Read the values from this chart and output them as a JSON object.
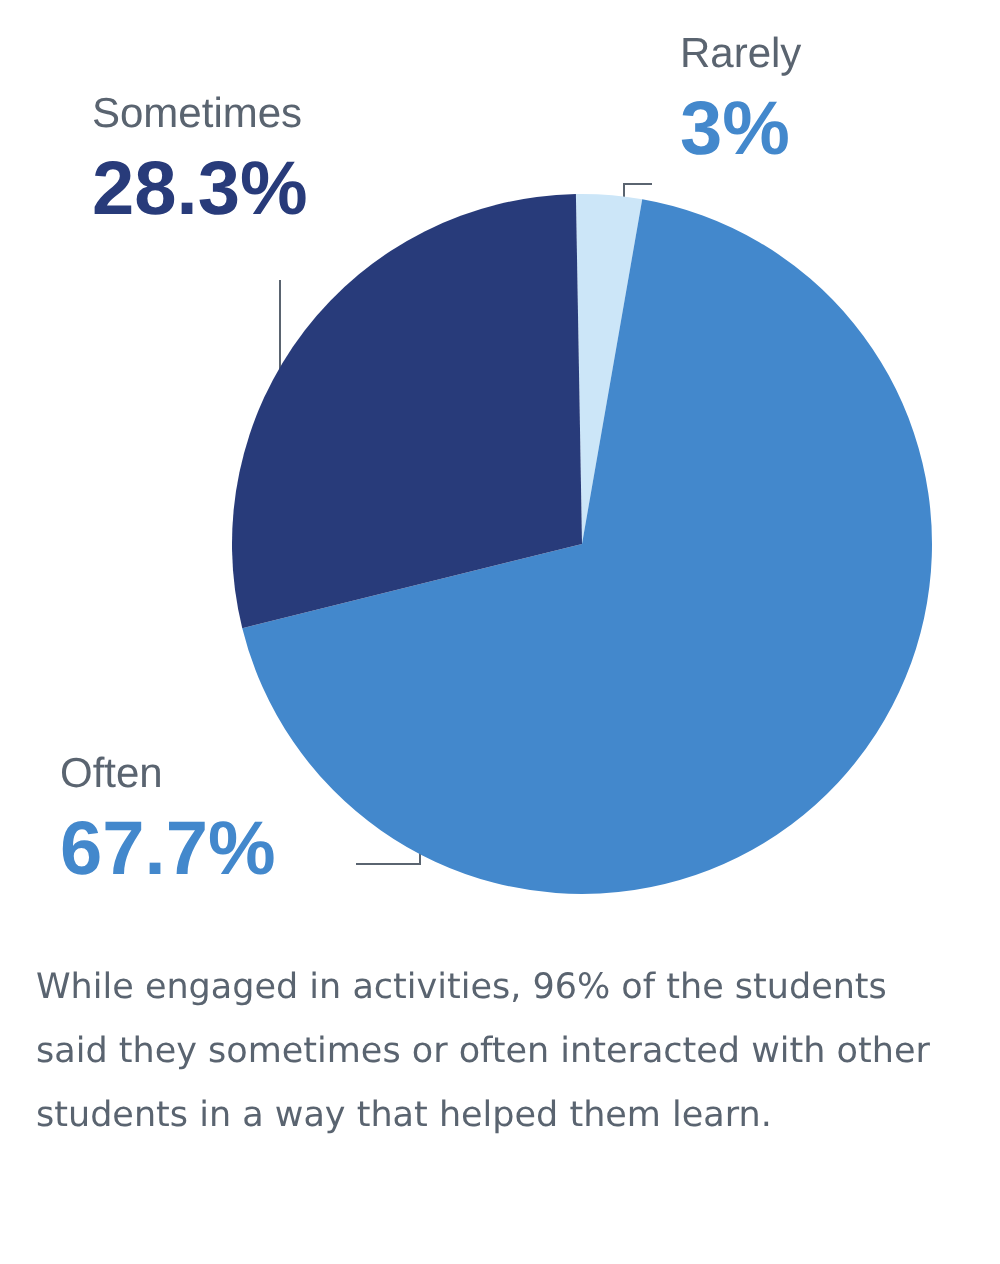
{
  "chart_data": {
    "type": "pie",
    "categories": [
      "Rarely",
      "Often",
      "Sometimes"
    ],
    "values": [
      3,
      67.7,
      28.3
    ],
    "value_labels": [
      "3%",
      "67.7%",
      "28.3%"
    ],
    "colors": [
      "#cce6f8",
      "#4388cc",
      "#283b7a"
    ],
    "legend": false,
    "annotations": [
      "While engaged in activities, 96% of the students said they sometimes or often interacted with other students in a way that helped them learn."
    ]
  }
}
